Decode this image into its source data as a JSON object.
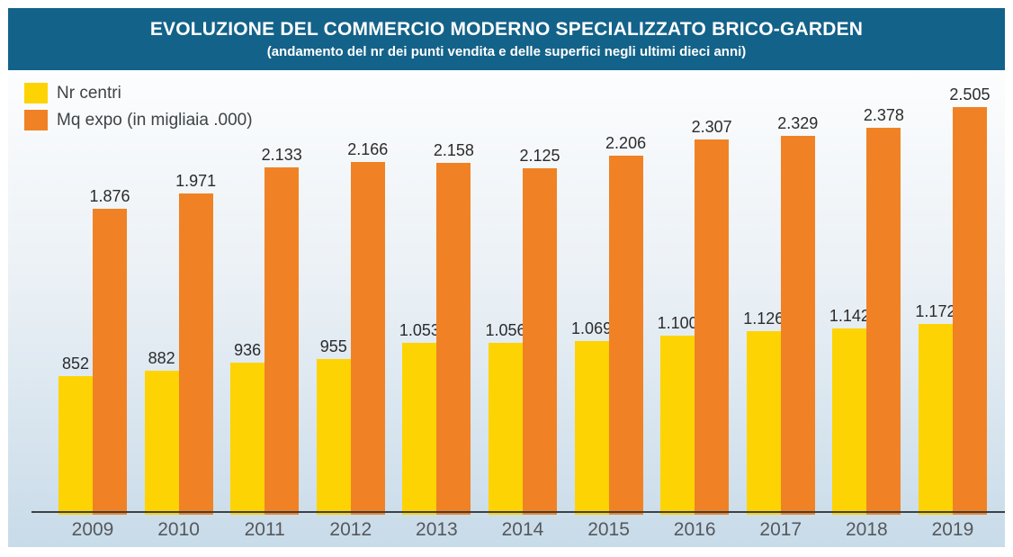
{
  "header": {
    "title": "EVOLUZIONE DEL COMMERCIO MODERNO SPECIALIZZATO BRICO-GARDEN",
    "subtitle": "(andamento del nr dei punti vendita e delle superfici negli ultimi dieci anni)"
  },
  "chart_data": {
    "type": "bar",
    "title": "EVOLUZIONE DEL COMMERCIO MODERNO SPECIALIZZATO BRICO-GARDEN",
    "subtitle": "(andamento del nr dei punti vendita e delle superfici negli ultimi dieci anni)",
    "categories": [
      "2009",
      "2010",
      "2011",
      "2012",
      "2013",
      "2014",
      "2015",
      "2016",
      "2017",
      "2018",
      "2019"
    ],
    "series": [
      {
        "name": "Nr centri",
        "color": "#FDD303",
        "values": [
          852,
          882,
          936,
          955,
          1053,
          1056,
          1069,
          1100,
          1126,
          1142,
          1172
        ],
        "labels": [
          "852",
          "882",
          "936",
          "955",
          "1.053",
          "1.056",
          "1.069",
          "1.100",
          "1.126",
          "1.142",
          "1.172"
        ]
      },
      {
        "name": "Mq expo (in migliaia .000)",
        "color": "#F08225",
        "values": [
          1876,
          1971,
          2133,
          2166,
          2158,
          2125,
          2206,
          2307,
          2329,
          2378,
          2505
        ],
        "labels": [
          "1.876",
          "1.971",
          "2.133",
          "2.166",
          "2.158",
          "2.125",
          "2.206",
          "2.307",
          "2.329",
          "2.378",
          "2.505"
        ]
      }
    ],
    "xlabel": "",
    "ylabel": "",
    "ylim": [
      0,
      2680
    ],
    "grid": false,
    "legend_position": "top-left"
  },
  "colors": {
    "header_bg": "#136289",
    "header_text": "#FFFFFF",
    "plot_bg_top": "#FCFDFE",
    "plot_bg_bottom": "#C8DBE9",
    "axis_line": "#3E4144",
    "value_label": "#2B2B2B",
    "year_label": "#55585C",
    "page_bg": "#FFFFFF"
  }
}
